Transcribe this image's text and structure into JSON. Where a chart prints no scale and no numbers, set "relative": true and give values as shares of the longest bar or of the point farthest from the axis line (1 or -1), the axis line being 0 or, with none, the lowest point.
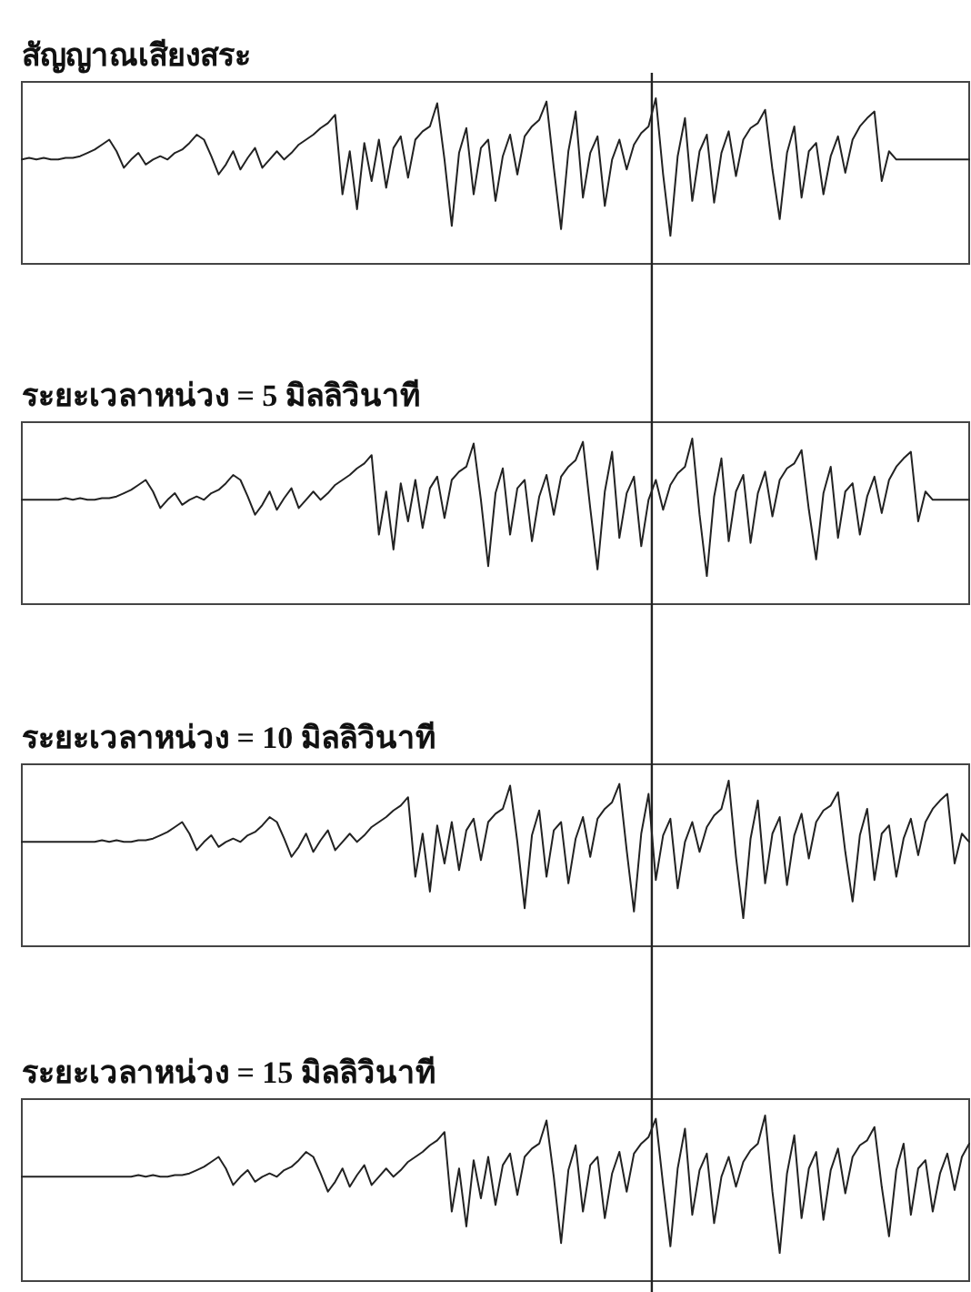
{
  "chart_data": [
    {
      "type": "line",
      "title": "สัญญาณเสียงสระ",
      "relative": true,
      "color": "#222222",
      "categories": [
        null,
        null,
        null,
        null,
        null,
        null,
        null,
        null,
        null,
        null,
        null,
        null,
        null,
        null,
        null,
        null,
        null,
        null,
        null,
        null,
        null,
        null,
        null,
        null,
        null,
        null,
        null,
        null,
        null,
        null,
        null,
        null,
        null,
        null,
        null,
        null,
        null,
        null,
        null,
        null,
        null,
        null,
        null,
        null,
        null,
        null,
        null,
        null,
        null,
        null,
        null,
        null,
        null,
        null,
        null,
        null,
        null,
        null,
        null,
        null,
        null,
        null,
        null,
        null,
        null,
        null,
        null,
        null,
        null,
        null,
        null,
        null,
        null,
        null,
        null,
        null,
        null,
        null,
        null,
        null,
        null,
        null,
        null,
        null,
        null,
        null,
        null,
        null,
        null,
        null,
        null,
        null,
        null,
        null,
        null,
        null,
        null,
        null,
        null,
        null,
        null,
        null,
        null,
        null,
        null,
        null,
        null,
        null,
        null,
        null,
        null,
        null,
        null,
        null,
        null,
        null,
        null,
        null,
        null,
        null,
        null,
        null,
        null,
        null,
        null,
        null,
        null,
        null,
        null,
        null,
        null
      ],
      "values": [
        0.63,
        0.64,
        0.63,
        0.64,
        0.63,
        0.63,
        0.64,
        0.64,
        0.65,
        0.67,
        0.69,
        0.72,
        0.75,
        0.68,
        0.58,
        0.63,
        0.67,
        0.6,
        0.63,
        0.65,
        0.63,
        0.67,
        0.69,
        0.73,
        0.78,
        0.75,
        0.65,
        0.54,
        0.6,
        0.68,
        0.57,
        0.64,
        0.7,
        0.58,
        0.63,
        0.68,
        0.63,
        0.67,
        0.72,
        0.75,
        0.78,
        0.82,
        0.85,
        0.9,
        0.42,
        0.68,
        0.33,
        0.73,
        0.5,
        0.75,
        0.46,
        0.7,
        0.77,
        0.52,
        0.75,
        0.8,
        0.83,
        0.97,
        0.63,
        0.23,
        0.67,
        0.82,
        0.42,
        0.7,
        0.75,
        0.38,
        0.65,
        0.78,
        0.54,
        0.77,
        0.83,
        0.87,
        0.98,
        0.58,
        0.21,
        0.68,
        0.92,
        0.4,
        0.67,
        0.77,
        0.35,
        0.63,
        0.75,
        0.57,
        0.72,
        0.79,
        0.83,
        1.0,
        0.54,
        0.17,
        0.65,
        0.88,
        0.38,
        0.68,
        0.78,
        0.37,
        0.67,
        0.8,
        0.53,
        0.75,
        0.82,
        0.85,
        0.93,
        0.57,
        0.27,
        0.67,
        0.83,
        0.4,
        0.68,
        0.73,
        0.42,
        0.65,
        0.77,
        0.55,
        0.75,
        0.83,
        0.88,
        0.92,
        0.5,
        0.68,
        0.63,
        0.63,
        0.63,
        0.63,
        0.63,
        0.63,
        0.63,
        0.63,
        0.63,
        0.63,
        0.63
      ]
    },
    {
      "type": "line",
      "title": "ระยะเวลาหน่วง = 5 มิลลิวินาที",
      "relative": true,
      "color": "#222222",
      "categories": [
        null,
        null,
        null,
        null,
        null,
        null,
        null,
        null,
        null,
        null,
        null,
        null,
        null,
        null,
        null,
        null,
        null,
        null,
        null,
        null,
        null,
        null,
        null,
        null,
        null,
        null,
        null,
        null,
        null,
        null,
        null,
        null,
        null,
        null,
        null,
        null,
        null,
        null,
        null,
        null,
        null,
        null,
        null,
        null,
        null,
        null,
        null,
        null,
        null,
        null,
        null,
        null,
        null,
        null,
        null,
        null,
        null,
        null,
        null,
        null,
        null,
        null,
        null,
        null,
        null,
        null,
        null,
        null,
        null,
        null,
        null,
        null,
        null,
        null,
        null,
        null,
        null,
        null,
        null,
        null,
        null,
        null,
        null,
        null,
        null,
        null,
        null,
        null,
        null,
        null,
        null,
        null,
        null,
        null,
        null,
        null,
        null,
        null,
        null,
        null,
        null,
        null,
        null,
        null,
        null,
        null,
        null,
        null,
        null,
        null,
        null,
        null,
        null,
        null,
        null,
        null,
        null,
        null,
        null,
        null,
        null,
        null,
        null,
        null,
        null,
        null,
        null,
        null,
        null,
        null,
        null
      ],
      "values": [
        0.63,
        0.63,
        0.63,
        0.63,
        0.63,
        0.63,
        0.64,
        0.63,
        0.64,
        0.63,
        0.63,
        0.64,
        0.64,
        0.65,
        0.67,
        0.69,
        0.72,
        0.75,
        0.68,
        0.58,
        0.63,
        0.67,
        0.6,
        0.63,
        0.65,
        0.63,
        0.67,
        0.69,
        0.73,
        0.78,
        0.75,
        0.65,
        0.54,
        0.6,
        0.68,
        0.57,
        0.64,
        0.7,
        0.58,
        0.63,
        0.68,
        0.63,
        0.67,
        0.72,
        0.75,
        0.78,
        0.82,
        0.85,
        0.9,
        0.42,
        0.68,
        0.33,
        0.73,
        0.5,
        0.75,
        0.46,
        0.7,
        0.77,
        0.52,
        0.75,
        0.8,
        0.83,
        0.97,
        0.63,
        0.23,
        0.67,
        0.82,
        0.42,
        0.7,
        0.75,
        0.38,
        0.65,
        0.78,
        0.54,
        0.77,
        0.83,
        0.87,
        0.98,
        0.58,
        0.21,
        0.68,
        0.92,
        0.4,
        0.67,
        0.77,
        0.35,
        0.63,
        0.75,
        0.57,
        0.72,
        0.79,
        0.83,
        1.0,
        0.54,
        0.17,
        0.65,
        0.88,
        0.38,
        0.68,
        0.78,
        0.37,
        0.67,
        0.8,
        0.53,
        0.75,
        0.82,
        0.85,
        0.93,
        0.57,
        0.27,
        0.67,
        0.83,
        0.4,
        0.68,
        0.73,
        0.42,
        0.65,
        0.77,
        0.55,
        0.75,
        0.83,
        0.88,
        0.92,
        0.5,
        0.68,
        0.63,
        0.63,
        0.63,
        0.63,
        0.63,
        0.63
      ]
    },
    {
      "type": "line",
      "title": "ระยะเวลาหน่วง = 10 มิลลิวินาที",
      "relative": true,
      "color": "#222222",
      "categories": [
        null,
        null,
        null,
        null,
        null,
        null,
        null,
        null,
        null,
        null,
        null,
        null,
        null,
        null,
        null,
        null,
        null,
        null,
        null,
        null,
        null,
        null,
        null,
        null,
        null,
        null,
        null,
        null,
        null,
        null,
        null,
        null,
        null,
        null,
        null,
        null,
        null,
        null,
        null,
        null,
        null,
        null,
        null,
        null,
        null,
        null,
        null,
        null,
        null,
        null,
        null,
        null,
        null,
        null,
        null,
        null,
        null,
        null,
        null,
        null,
        null,
        null,
        null,
        null,
        null,
        null,
        null,
        null,
        null,
        null,
        null,
        null,
        null,
        null,
        null,
        null,
        null,
        null,
        null,
        null,
        null,
        null,
        null,
        null,
        null,
        null,
        null,
        null,
        null,
        null,
        null,
        null,
        null,
        null,
        null,
        null,
        null,
        null,
        null,
        null,
        null,
        null,
        null,
        null,
        null,
        null,
        null,
        null,
        null,
        null,
        null,
        null,
        null,
        null,
        null,
        null,
        null,
        null,
        null,
        null,
        null,
        null,
        null,
        null,
        null,
        null,
        null,
        null,
        null,
        null,
        null
      ],
      "values": [
        0.63,
        0.63,
        0.63,
        0.63,
        0.63,
        0.63,
        0.63,
        0.63,
        0.63,
        0.63,
        0.63,
        0.64,
        0.63,
        0.64,
        0.63,
        0.63,
        0.64,
        0.64,
        0.65,
        0.67,
        0.69,
        0.72,
        0.75,
        0.68,
        0.58,
        0.63,
        0.67,
        0.6,
        0.63,
        0.65,
        0.63,
        0.67,
        0.69,
        0.73,
        0.78,
        0.75,
        0.65,
        0.54,
        0.6,
        0.68,
        0.57,
        0.64,
        0.7,
        0.58,
        0.63,
        0.68,
        0.63,
        0.67,
        0.72,
        0.75,
        0.78,
        0.82,
        0.85,
        0.9,
        0.42,
        0.68,
        0.33,
        0.73,
        0.5,
        0.75,
        0.46,
        0.7,
        0.77,
        0.52,
        0.75,
        0.8,
        0.83,
        0.97,
        0.63,
        0.23,
        0.67,
        0.82,
        0.42,
        0.7,
        0.75,
        0.38,
        0.65,
        0.78,
        0.54,
        0.77,
        0.83,
        0.87,
        0.98,
        0.58,
        0.21,
        0.68,
        0.92,
        0.4,
        0.67,
        0.77,
        0.35,
        0.63,
        0.75,
        0.57,
        0.72,
        0.79,
        0.83,
        1.0,
        0.54,
        0.17,
        0.65,
        0.88,
        0.38,
        0.68,
        0.78,
        0.37,
        0.67,
        0.8,
        0.53,
        0.75,
        0.82,
        0.85,
        0.93,
        0.57,
        0.27,
        0.67,
        0.83,
        0.4,
        0.68,
        0.73,
        0.42,
        0.65,
        0.77,
        0.55,
        0.75,
        0.83,
        0.88,
        0.92,
        0.5,
        0.68,
        0.63
      ]
    },
    {
      "type": "line",
      "title": "ระยะเวลาหน่วง = 15 มิลลิวินาที",
      "relative": true,
      "color": "#222222",
      "categories": [
        null,
        null,
        null,
        null,
        null,
        null,
        null,
        null,
        null,
        null,
        null,
        null,
        null,
        null,
        null,
        null,
        null,
        null,
        null,
        null,
        null,
        null,
        null,
        null,
        null,
        null,
        null,
        null,
        null,
        null,
        null,
        null,
        null,
        null,
        null,
        null,
        null,
        null,
        null,
        null,
        null,
        null,
        null,
        null,
        null,
        null,
        null,
        null,
        null,
        null,
        null,
        null,
        null,
        null,
        null,
        null,
        null,
        null,
        null,
        null,
        null,
        null,
        null,
        null,
        null,
        null,
        null,
        null,
        null,
        null,
        null,
        null,
        null,
        null,
        null,
        null,
        null,
        null,
        null,
        null,
        null,
        null,
        null,
        null,
        null,
        null,
        null,
        null,
        null,
        null,
        null,
        null,
        null,
        null,
        null,
        null,
        null,
        null,
        null,
        null,
        null,
        null,
        null,
        null,
        null,
        null,
        null,
        null,
        null,
        null,
        null,
        null,
        null,
        null,
        null,
        null,
        null,
        null,
        null,
        null,
        null,
        null,
        null,
        null,
        null,
        null,
        null,
        null,
        null,
        null,
        null
      ],
      "values": [
        0.63,
        0.63,
        0.63,
        0.63,
        0.63,
        0.63,
        0.63,
        0.63,
        0.63,
        0.63,
        0.63,
        0.63,
        0.63,
        0.63,
        0.63,
        0.63,
        0.64,
        0.63,
        0.64,
        0.63,
        0.63,
        0.64,
        0.64,
        0.65,
        0.67,
        0.69,
        0.72,
        0.75,
        0.68,
        0.58,
        0.63,
        0.67,
        0.6,
        0.63,
        0.65,
        0.63,
        0.67,
        0.69,
        0.73,
        0.78,
        0.75,
        0.65,
        0.54,
        0.6,
        0.68,
        0.57,
        0.64,
        0.7,
        0.58,
        0.63,
        0.68,
        0.63,
        0.67,
        0.72,
        0.75,
        0.78,
        0.82,
        0.85,
        0.9,
        0.42,
        0.68,
        0.33,
        0.73,
        0.5,
        0.75,
        0.46,
        0.7,
        0.77,
        0.52,
        0.75,
        0.8,
        0.83,
        0.97,
        0.63,
        0.23,
        0.67,
        0.82,
        0.42,
        0.7,
        0.75,
        0.38,
        0.65,
        0.78,
        0.54,
        0.77,
        0.83,
        0.87,
        0.98,
        0.58,
        0.21,
        0.68,
        0.92,
        0.4,
        0.67,
        0.77,
        0.35,
        0.63,
        0.75,
        0.57,
        0.72,
        0.79,
        0.83,
        1.0,
        0.54,
        0.17,
        0.65,
        0.88,
        0.38,
        0.68,
        0.78,
        0.37,
        0.67,
        0.8,
        0.53,
        0.75,
        0.82,
        0.85,
        0.93,
        0.57,
        0.27,
        0.67,
        0.83,
        0.4,
        0.68,
        0.73,
        0.42,
        0.65,
        0.77,
        0.55,
        0.75,
        0.83
      ]
    }
  ]
}
